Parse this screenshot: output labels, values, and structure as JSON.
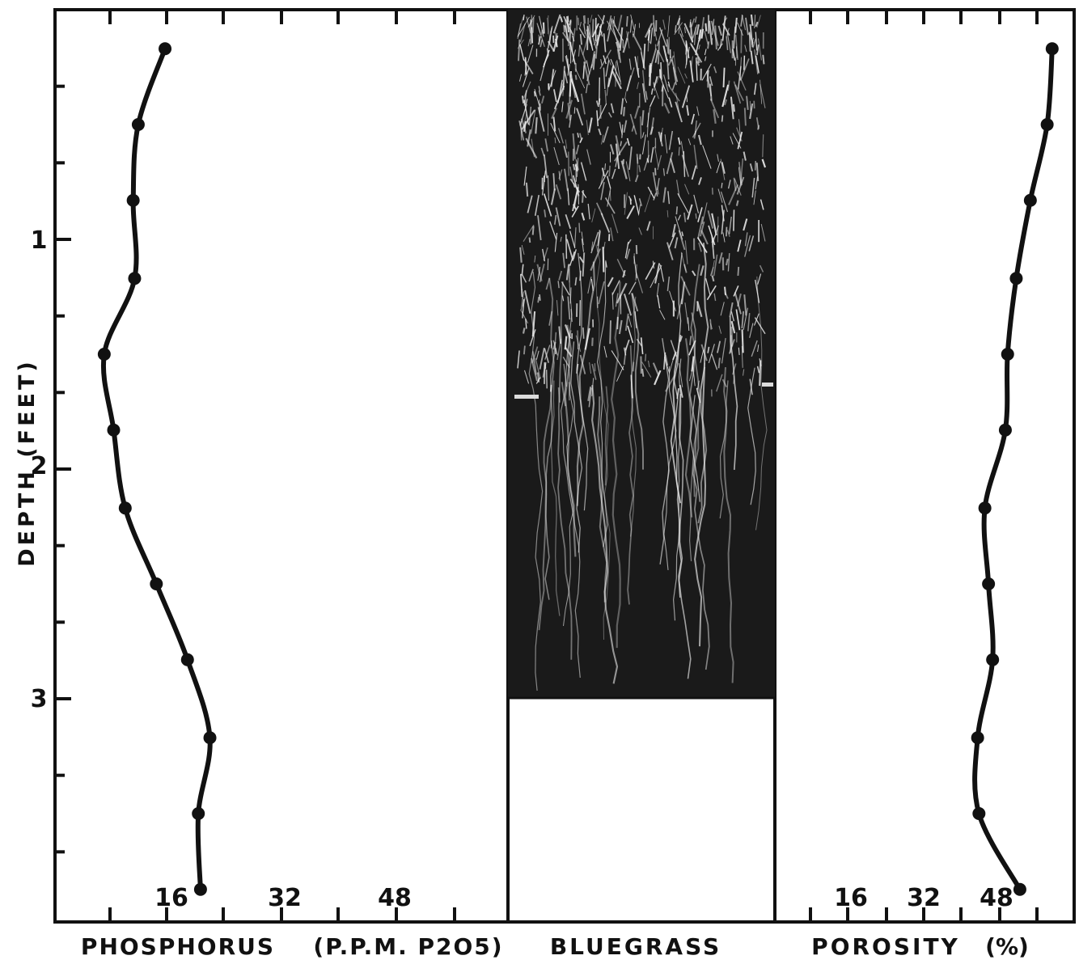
{
  "colors": {
    "ink": "#111111",
    "photo_dark": "#1a1a1a",
    "roots": "#e9e9e9",
    "background": "#ffffff"
  },
  "panels": {
    "phosphorus": {
      "xlabel": "PHOSPHORUS",
      "xunit": "(P.P.M. P2O5)"
    },
    "bluegrass": {
      "label": "BLUEGRASS"
    },
    "porosity": {
      "xlabel": "POROSITY",
      "xunit": "(%)"
    }
  },
  "yaxis": {
    "label": "DEPTH (FEET)",
    "tick_labels": [
      "1",
      "2",
      "3"
    ]
  },
  "phosphorus_ticks": [
    "16",
    "32",
    "48"
  ],
  "porosity_ticks": [
    "16",
    "32",
    "48"
  ],
  "chart_data": [
    {
      "type": "line",
      "title": "",
      "xlabel": "PHOSPHORUS (P.P.M. P2O5)",
      "ylabel": "DEPTH (FEET)",
      "xlim": [
        0,
        64
      ],
      "ylim": [
        4.0,
        0
      ],
      "x_ticks": [
        16,
        32,
        48
      ],
      "y_ticks": [
        1,
        2,
        3
      ],
      "series": [
        {
          "points": [
            {
              "depth": 0.17,
              "value": 15.2
            },
            {
              "depth": 0.5,
              "value": 11.5
            },
            {
              "depth": 0.83,
              "value": 10.8
            },
            {
              "depth": 1.17,
              "value": 11.0
            },
            {
              "depth": 1.5,
              "value": 6.8
            },
            {
              "depth": 1.83,
              "value": 8.1
            },
            {
              "depth": 2.17,
              "value": 9.7
            },
            {
              "depth": 2.5,
              "value": 14.0
            },
            {
              "depth": 2.83,
              "value": 18.3
            },
            {
              "depth": 3.17,
              "value": 21.4
            },
            {
              "depth": 3.5,
              "value": 19.8
            },
            {
              "depth": 3.83,
              "value": 20.1
            }
          ]
        }
      ]
    },
    {
      "type": "line",
      "title": "",
      "xlabel": "POROSITY (%)",
      "ylabel": "DEPTH (FEET)",
      "xlim": [
        0,
        64
      ],
      "ylim": [
        4.0,
        0
      ],
      "x_ticks": [
        16,
        32,
        48
      ],
      "y_ticks": [
        1,
        2,
        3
      ],
      "series": [
        {
          "points": [
            {
              "depth": 0.17,
              "value": 61.0
            },
            {
              "depth": 0.5,
              "value": 59.9
            },
            {
              "depth": 0.83,
              "value": 56.2
            },
            {
              "depth": 1.17,
              "value": 53.1
            },
            {
              "depth": 1.5,
              "value": 51.2
            },
            {
              "depth": 1.83,
              "value": 50.7
            },
            {
              "depth": 2.17,
              "value": 46.2
            },
            {
              "depth": 2.5,
              "value": 47.0
            },
            {
              "depth": 2.83,
              "value": 47.9
            },
            {
              "depth": 3.17,
              "value": 44.6
            },
            {
              "depth": 3.5,
              "value": 44.9
            },
            {
              "depth": 3.83,
              "value": 53.9
            }
          ]
        }
      ]
    }
  ]
}
